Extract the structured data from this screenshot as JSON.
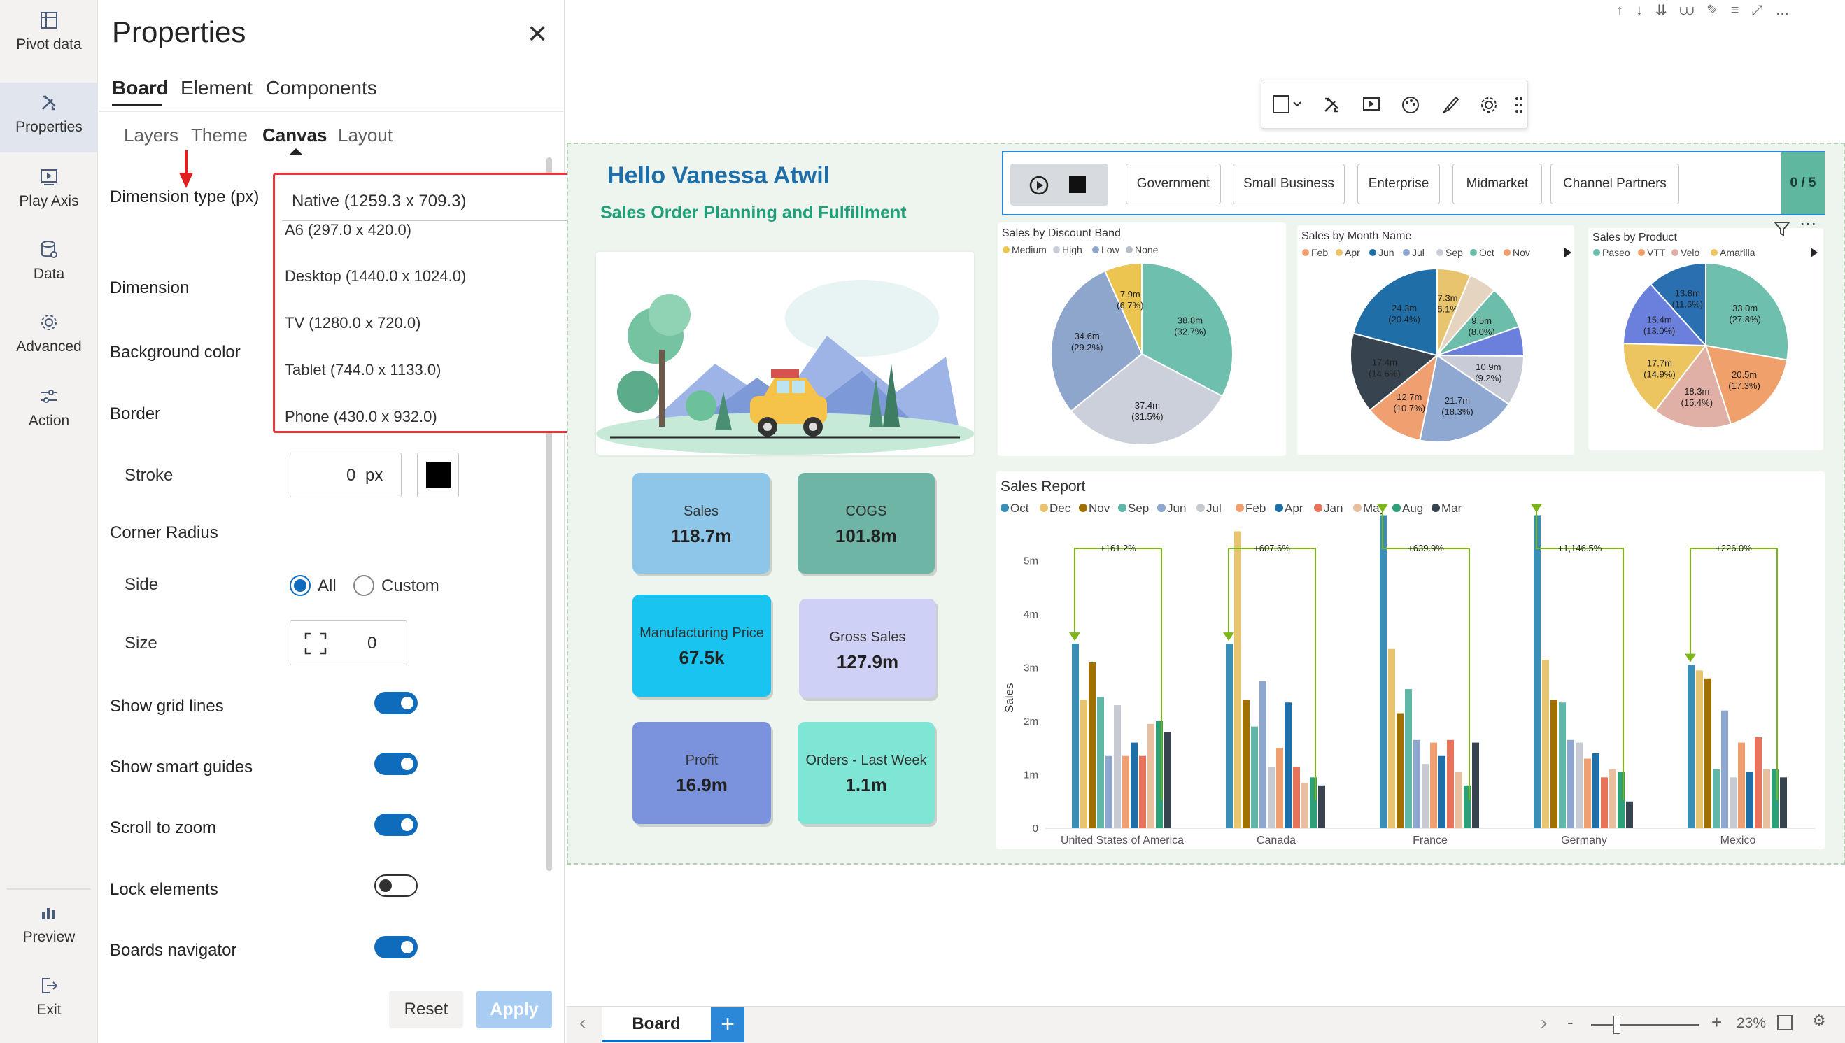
{
  "rail": {
    "items": [
      {
        "label": "Pivot data",
        "icon": "pivot-data-icon"
      },
      {
        "label": "Properties",
        "icon": "properties-icon"
      },
      {
        "label": "Play Axis",
        "icon": "play-axis-icon"
      },
      {
        "label": "Data",
        "icon": "data-icon"
      },
      {
        "label": "Advanced",
        "icon": "gear-icon"
      },
      {
        "label": "Action",
        "icon": "action-icon"
      }
    ],
    "preview": "Preview",
    "exit": "Exit"
  },
  "panel": {
    "title": "Properties",
    "tabs": [
      "Board",
      "Element",
      "Components"
    ],
    "subtabs": [
      "Layers",
      "Theme",
      "Canvas",
      "Layout"
    ],
    "dimension_type_label": "Dimension type (px)",
    "dimension_selected": "Native (1259.3 x 709.3)",
    "dimension_options": [
      "A6 (297.0 x 420.0)",
      "Desktop (1440.0 x 1024.0)",
      "TV (1280.0 x 720.0)",
      "Tablet (744.0 x 1133.0)",
      "Phone (430.0 x 932.0)"
    ],
    "dimension_label": "Dimension",
    "background_color_label": "Background color",
    "border_label": "Border",
    "stroke_label": "Stroke",
    "stroke_value": "0",
    "stroke_unit": "px",
    "stroke_color": "#000000",
    "corner_radius_label": "Corner Radius",
    "side_label": "Side",
    "side_all": "All",
    "side_custom": "Custom",
    "size_label": "Size",
    "size_value": "0",
    "toggles": [
      {
        "label": "Show grid lines",
        "on": true
      },
      {
        "label": "Show smart guides",
        "on": true
      },
      {
        "label": "Scroll to zoom",
        "on": true
      },
      {
        "label": "Lock elements",
        "on": false
      },
      {
        "label": "Boards navigator",
        "on": true
      }
    ],
    "reset": "Reset",
    "apply": "Apply"
  },
  "board": {
    "greeting": "Hello Vanessa Atwil",
    "subtitle": "Sales Order Planning and Fulfillment",
    "kpis": [
      {
        "title": "Sales",
        "value": "118.7m",
        "color": "#8dc6e8"
      },
      {
        "title": "COGS",
        "value": "101.8m",
        "color": "#6fb5a6"
      },
      {
        "title": "Manufacturing Price",
        "value": "67.5k",
        "color": "#19c4f0"
      },
      {
        "title": "Gross Sales",
        "value": "127.9m",
        "color": "#cfd0f5"
      },
      {
        "title": "Profit",
        "value": "16.9m",
        "color": "#7b93dd"
      },
      {
        "title": "Orders - Last Week",
        "value": "1.1m",
        "color": "#7fe6d5"
      }
    ],
    "slicer": {
      "buttons": [
        "Government",
        "Small Business",
        "Enterprise",
        "Midmarket",
        "Channel Partners"
      ],
      "counter": "0 / 5"
    },
    "tab": "Board",
    "zoom": "23%"
  },
  "chart_data": [
    {
      "type": "pie",
      "title": "Sales by Discount Band",
      "legend": [
        "Medium",
        "High",
        "Low",
        "None"
      ],
      "slices": [
        {
          "name": "None",
          "value": 38.8,
          "label": "38.8m",
          "pct": "(32.7%)",
          "color": "#6fbfae"
        },
        {
          "name": "Low",
          "value": 37.4,
          "label": "37.4m",
          "pct": "(31.5%)",
          "color": "#ccd0da"
        },
        {
          "name": "High",
          "value": 34.6,
          "label": "34.6m",
          "pct": "(29.2%)",
          "color": "#8ea6cc"
        },
        {
          "name": "Medium",
          "value": 7.9,
          "label": "7.9m",
          "pct": "(6.7%)",
          "color": "#ecc550"
        }
      ]
    },
    {
      "type": "pie",
      "title": "Sales by Month Name",
      "legend": [
        "Feb",
        "Apr",
        "Jun",
        "Jul",
        "Sep",
        "Oct",
        "Nov"
      ],
      "slices": [
        {
          "value": 7.3,
          "label": "7.3m",
          "pct": "(6.1%)",
          "color": "#e8c46e"
        },
        {
          "value": 6.0,
          "label": "",
          "pct": "",
          "color": "#e5d5c0"
        },
        {
          "value": 9.5,
          "label": "9.5m",
          "pct": "(8.0%)",
          "color": "#6cbdaa"
        },
        {
          "value": 6.4,
          "label": "",
          "pct": "",
          "color": "#6b7fdc"
        },
        {
          "value": 10.9,
          "label": "10.9m",
          "pct": "(9.2%)",
          "color": "#c9ccd6"
        },
        {
          "value": 21.7,
          "label": "21.7m",
          "pct": "(18.3%)",
          "color": "#8fa8d2"
        },
        {
          "value": 12.7,
          "label": "12.7m",
          "pct": "(10.7%)",
          "color": "#f0a070"
        },
        {
          "value": 17.4,
          "label": "17.4m",
          "pct": "(14.6%)",
          "color": "#37434f"
        },
        {
          "value": 24.3,
          "label": "24.3m",
          "pct": "(20.4%)",
          "color": "#1f6ea8"
        }
      ]
    },
    {
      "type": "pie",
      "title": "Sales by Product",
      "legend": [
        "Paseo",
        "VTT",
        "Velo",
        "Amarilla"
      ],
      "slices": [
        {
          "value": 33.0,
          "label": "33.0m",
          "pct": "(27.8%)",
          "color": "#6fbfae"
        },
        {
          "value": 20.5,
          "label": "20.5m",
          "pct": "(17.3%)",
          "color": "#f0a06a"
        },
        {
          "value": 18.3,
          "label": "18.3m",
          "pct": "(15.4%)",
          "color": "#e0b0a6"
        },
        {
          "value": 17.7,
          "label": "17.7m",
          "pct": "(14.9%)",
          "color": "#ecc560"
        },
        {
          "value": 15.4,
          "label": "15.4m",
          "pct": "(13.0%)",
          "color": "#6b80dd"
        },
        {
          "value": 13.8,
          "label": "13.8m",
          "pct": "(11.6%)",
          "color": "#2a6fb0"
        }
      ]
    },
    {
      "type": "bar",
      "title": "Sales Report",
      "ylabel": "Sales",
      "ylim": [
        0,
        6
      ],
      "yticks": [
        "0",
        "1m",
        "2m",
        "3m",
        "4m",
        "5m"
      ],
      "categories": [
        "United States of America",
        "Canada",
        "France",
        "Germany",
        "Mexico"
      ],
      "series": [
        {
          "name": "Oct",
          "color": "#3a8fb7",
          "values": [
            3.45,
            3.45,
            5.85,
            5.85,
            3.05
          ]
        },
        {
          "name": "Dec",
          "color": "#e8c46e",
          "values": [
            2.4,
            5.55,
            3.35,
            3.15,
            2.95
          ]
        },
        {
          "name": "Nov",
          "color": "#a07000",
          "values": [
            3.1,
            2.4,
            2.15,
            2.4,
            2.8
          ]
        },
        {
          "name": "Sep",
          "color": "#5fb7a7",
          "values": [
            2.45,
            1.9,
            2.6,
            2.35,
            1.1
          ]
        },
        {
          "name": "Jun",
          "color": "#8fa6cf",
          "values": [
            1.35,
            2.75,
            1.65,
            1.65,
            2.2
          ]
        },
        {
          "name": "Jul",
          "color": "#c8cad3",
          "values": [
            2.3,
            1.15,
            1.2,
            1.6,
            0.95
          ]
        },
        {
          "name": "Feb",
          "color": "#f0a070",
          "values": [
            1.35,
            1.5,
            1.6,
            1.3,
            1.6
          ]
        },
        {
          "name": "Apr",
          "color": "#1f6ea8",
          "values": [
            1.6,
            2.35,
            1.35,
            1.4,
            1.05
          ]
        },
        {
          "name": "Jan",
          "color": "#e8735a",
          "values": [
            1.35,
            1.15,
            1.65,
            0.95,
            1.7
          ]
        },
        {
          "name": "May",
          "color": "#e8c0a0",
          "values": [
            1.95,
            0.85,
            1.05,
            1.1,
            1.1
          ]
        },
        {
          "name": "Aug",
          "color": "#2ea079",
          "values": [
            2.0,
            0.95,
            0.8,
            1.05,
            1.1
          ]
        },
        {
          "name": "Mar",
          "color": "#37434f",
          "values": [
            1.8,
            0.8,
            1.6,
            0.5,
            0.95
          ]
        }
      ],
      "annotations": [
        "+161.2%",
        "+607.6%",
        "+639.9%",
        "+1,146.5%",
        "+226.0%"
      ]
    }
  ]
}
